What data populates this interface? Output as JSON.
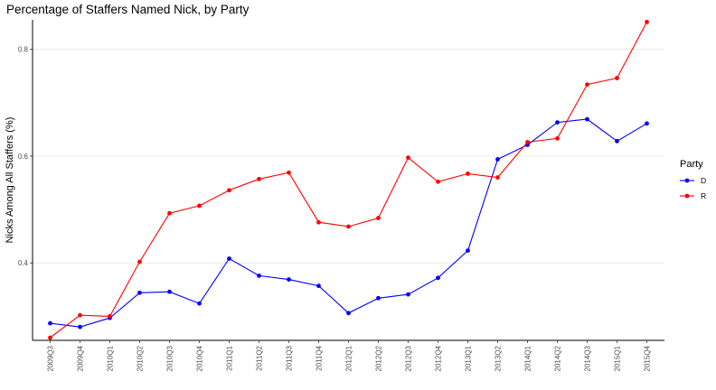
{
  "chart_data": {
    "type": "line",
    "title": "Percentage of Staffers Named Nick, by Party",
    "xlabel": "",
    "ylabel": "Nicks Among All Staffers (%)",
    "ylim": [
      0.255,
      0.855
    ],
    "yticks": [
      0.4,
      0.6,
      0.8
    ],
    "ytick_labels": [
      "0.4",
      "0.6",
      "0.8"
    ],
    "grid": "horizontal major",
    "categories": [
      "2009Q3",
      "2009Q4",
      "2010Q1",
      "2010Q2",
      "2010Q3",
      "2010Q4",
      "2011Q1",
      "2011Q2",
      "2011Q3",
      "2011Q4",
      "2012Q1",
      "2012Q2",
      "2012Q3",
      "2012Q4",
      "2013Q1",
      "2013Q2",
      "2014Q1",
      "2014Q2",
      "2014Q3",
      "2015Q1",
      "2015Q4"
    ],
    "legend_title": "Party",
    "legend_position": "right",
    "series": [
      {
        "name": "D",
        "color": "#0000ff",
        "values": [
          0.287,
          0.28,
          0.297,
          0.344,
          0.346,
          0.324,
          0.408,
          0.376,
          0.369,
          0.357,
          0.306,
          0.334,
          0.341,
          0.372,
          0.423,
          0.594,
          0.621,
          0.663,
          0.669,
          0.628,
          0.661
        ]
      },
      {
        "name": "R",
        "color": "#ff0000",
        "values": [
          0.26,
          0.302,
          0.3,
          0.402,
          0.493,
          0.507,
          0.536,
          0.557,
          0.569,
          0.476,
          0.468,
          0.484,
          0.597,
          0.552,
          0.567,
          0.56,
          0.626,
          0.633,
          0.734,
          0.746,
          0.851
        ]
      }
    ]
  }
}
